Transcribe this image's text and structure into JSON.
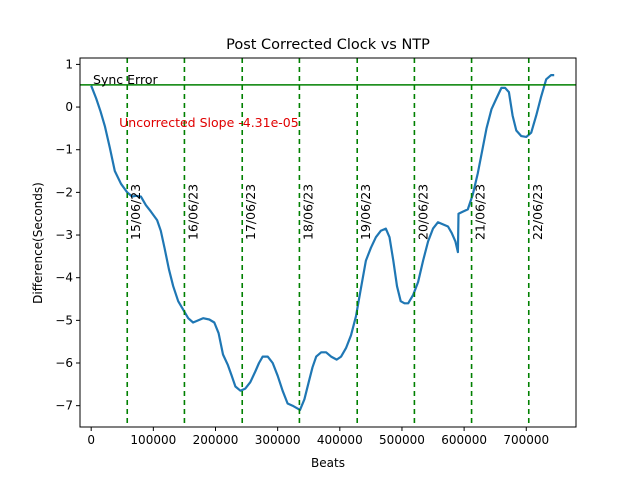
{
  "chart_data": {
    "type": "line",
    "title": "Post Corrected Clock vs NTP",
    "xlabel": "Beats",
    "ylabel": "Difference(Seconds)",
    "xlim": [
      -18000,
      780000
    ],
    "ylim": [
      -7.5,
      1.15
    ],
    "xticks": [
      0,
      100000,
      200000,
      300000,
      400000,
      500000,
      600000,
      700000
    ],
    "yticks": [
      1,
      0,
      -1,
      -2,
      -3,
      -4,
      -5,
      -6,
      -7
    ],
    "grid": false,
    "series": [
      {
        "color": "#1f77b4",
        "points": [
          [
            0,
            0.5
          ],
          [
            8000,
            0.2
          ],
          [
            15000,
            -0.1
          ],
          [
            22000,
            -0.45
          ],
          [
            30000,
            -0.95
          ],
          [
            38000,
            -1.5
          ],
          [
            48000,
            -1.8
          ],
          [
            58000,
            -2.0
          ],
          [
            66000,
            -2.1
          ],
          [
            72000,
            -2.08
          ],
          [
            80000,
            -2.1
          ],
          [
            88000,
            -2.3
          ],
          [
            96000,
            -2.45
          ],
          [
            106000,
            -2.65
          ],
          [
            112000,
            -2.9
          ],
          [
            118000,
            -3.3
          ],
          [
            125000,
            -3.8
          ],
          [
            132000,
            -4.2
          ],
          [
            140000,
            -4.55
          ],
          [
            148000,
            -4.75
          ],
          [
            156000,
            -4.95
          ],
          [
            164000,
            -5.05
          ],
          [
            172000,
            -5.0
          ],
          [
            180000,
            -4.95
          ],
          [
            190000,
            -4.98
          ],
          [
            198000,
            -5.05
          ],
          [
            205000,
            -5.3
          ],
          [
            212000,
            -5.8
          ],
          [
            220000,
            -6.05
          ],
          [
            226000,
            -6.3
          ],
          [
            232000,
            -6.55
          ],
          [
            240000,
            -6.65
          ],
          [
            248000,
            -6.6
          ],
          [
            256000,
            -6.45
          ],
          [
            264000,
            -6.2
          ],
          [
            270000,
            -6.0
          ],
          [
            276000,
            -5.85
          ],
          [
            284000,
            -5.85
          ],
          [
            292000,
            -6.0
          ],
          [
            300000,
            -6.3
          ],
          [
            308000,
            -6.65
          ],
          [
            316000,
            -6.95
          ],
          [
            324000,
            -7.0
          ],
          [
            330000,
            -7.05
          ],
          [
            336000,
            -7.1
          ],
          [
            343000,
            -6.85
          ],
          [
            350000,
            -6.45
          ],
          [
            356000,
            -6.1
          ],
          [
            362000,
            -5.85
          ],
          [
            370000,
            -5.75
          ],
          [
            378000,
            -5.75
          ],
          [
            386000,
            -5.85
          ],
          [
            395000,
            -5.92
          ],
          [
            402000,
            -5.85
          ],
          [
            410000,
            -5.65
          ],
          [
            418000,
            -5.35
          ],
          [
            426000,
            -4.9
          ],
          [
            434000,
            -4.25
          ],
          [
            442000,
            -3.6
          ],
          [
            450000,
            -3.3
          ],
          [
            458000,
            -3.05
          ],
          [
            466000,
            -2.9
          ],
          [
            474000,
            -2.85
          ],
          [
            480000,
            -3.05
          ],
          [
            486000,
            -3.6
          ],
          [
            492000,
            -4.2
          ],
          [
            498000,
            -4.55
          ],
          [
            504000,
            -4.6
          ],
          [
            510000,
            -4.6
          ],
          [
            518000,
            -4.4
          ],
          [
            526000,
            -4.1
          ],
          [
            534000,
            -3.6
          ],
          [
            542000,
            -3.15
          ],
          [
            550000,
            -2.85
          ],
          [
            558000,
            -2.7
          ],
          [
            566000,
            -2.75
          ],
          [
            574000,
            -2.8
          ],
          [
            580000,
            -2.95
          ],
          [
            586000,
            -3.15
          ],
          [
            590000,
            -3.4
          ],
          [
            591000,
            -2.5
          ],
          [
            598000,
            -2.45
          ],
          [
            606000,
            -2.4
          ],
          [
            614000,
            -2.05
          ],
          [
            622000,
            -1.55
          ],
          [
            630000,
            -0.95
          ],
          [
            636000,
            -0.5
          ],
          [
            644000,
            -0.05
          ],
          [
            652000,
            0.2
          ],
          [
            660000,
            0.45
          ],
          [
            666000,
            0.45
          ],
          [
            672000,
            0.35
          ],
          [
            678000,
            -0.2
          ],
          [
            684000,
            -0.55
          ],
          [
            692000,
            -0.68
          ],
          [
            700000,
            -0.7
          ],
          [
            708000,
            -0.6
          ],
          [
            716000,
            -0.2
          ],
          [
            724000,
            0.25
          ],
          [
            732000,
            0.65
          ],
          [
            740000,
            0.75
          ],
          [
            745000,
            0.75
          ]
        ]
      }
    ],
    "hline": {
      "y": 0.52,
      "color": "#008000",
      "label": "Sync Error"
    },
    "vlines": {
      "color": "#008000",
      "items": [
        {
          "x": 58000,
          "label": "15/06/23"
        },
        {
          "x": 150000,
          "label": "16/06/23"
        },
        {
          "x": 243000,
          "label": "17/06/23"
        },
        {
          "x": 335000,
          "label": "18/06/23"
        },
        {
          "x": 428000,
          "label": "19/06/23"
        },
        {
          "x": 520000,
          "label": "20/06/23"
        },
        {
          "x": 612000,
          "label": "21/06/23"
        },
        {
          "x": 704000,
          "label": "22/06/23"
        }
      ]
    },
    "annotation": {
      "text": "Uncorrected Slope -4.31e-05",
      "color": "#e00000",
      "x": 45000,
      "y": -0.47
    }
  }
}
